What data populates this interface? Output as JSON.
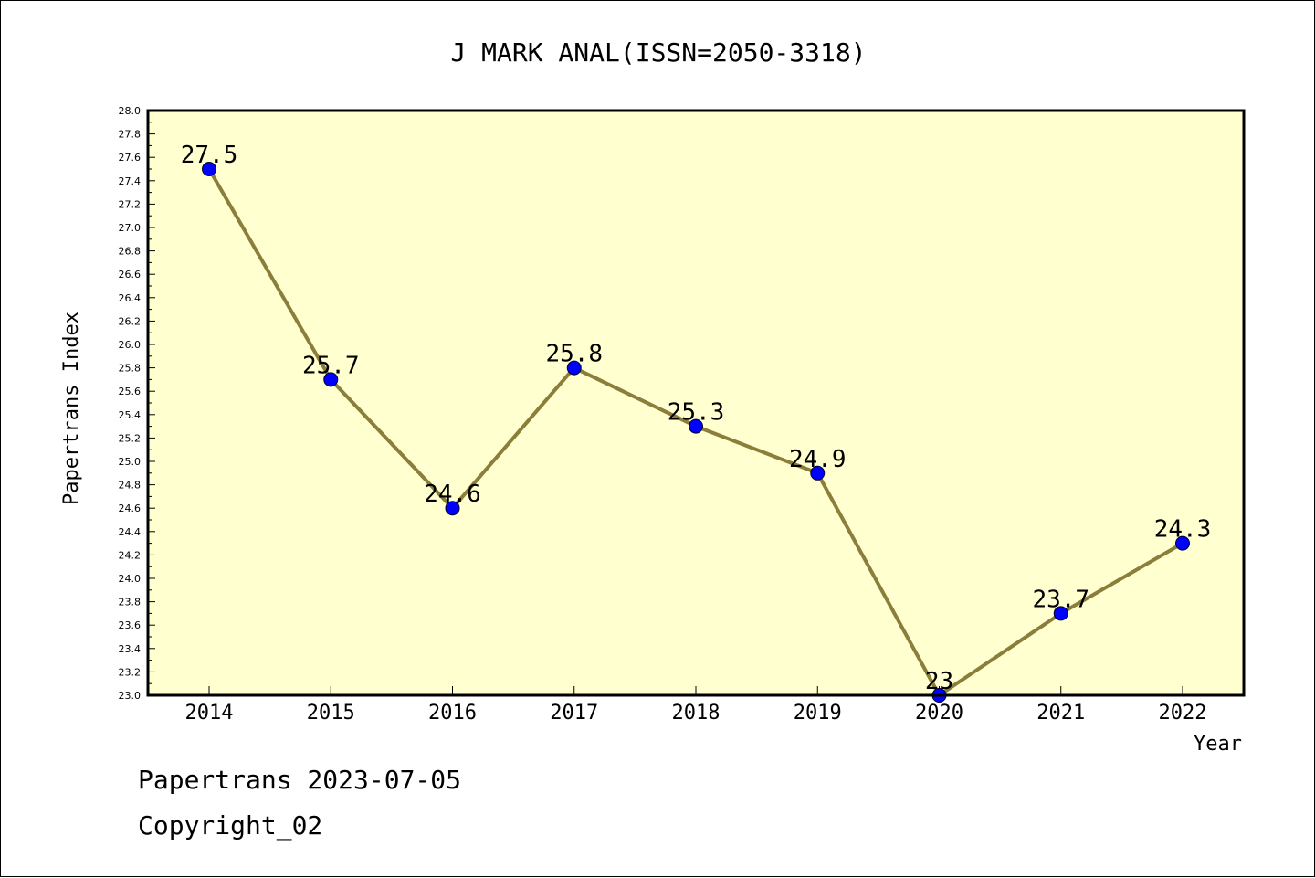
{
  "chart_data": {
    "type": "line",
    "title": "J MARK ANAL(ISSN=2050-3318)",
    "xlabel": "Year",
    "ylabel": "Papertrans Index",
    "categories": [
      "2014",
      "2015",
      "2016",
      "2017",
      "2018",
      "2019",
      "2020",
      "2021",
      "2022"
    ],
    "values": [
      27.5,
      25.7,
      24.6,
      25.8,
      25.3,
      24.9,
      23,
      23.7,
      24.3
    ],
    "value_labels": [
      "27.5",
      "25.7",
      "24.6",
      "25.8",
      "25.3",
      "24.9",
      "23",
      "23.7",
      "24.3"
    ],
    "ylim": [
      23.0,
      28.0
    ],
    "yticks": [
      "23.0",
      "23.2",
      "23.4",
      "23.6",
      "23.8",
      "24.0",
      "24.2",
      "24.4",
      "24.6",
      "24.8",
      "25.0",
      "25.2",
      "25.4",
      "25.6",
      "25.8",
      "26.0",
      "26.2",
      "26.4",
      "26.6",
      "26.8",
      "27.0",
      "27.2",
      "27.4",
      "27.6",
      "27.8",
      "28.0"
    ],
    "grid": false,
    "colors": {
      "plot_background": "#FFFFD0",
      "line": "#8B7D3A",
      "marker": "#0000FF"
    }
  },
  "footer": {
    "line1": "Papertrans 2023-07-05",
    "line2": "Copyright_02"
  }
}
